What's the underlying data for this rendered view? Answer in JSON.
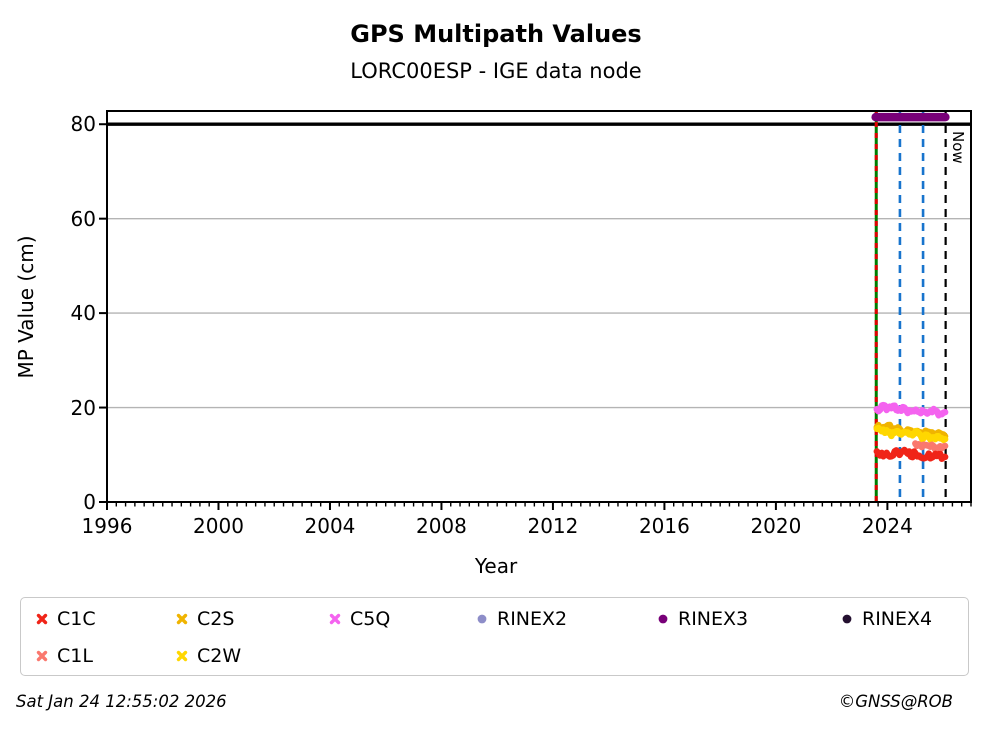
{
  "header": {
    "title": "GPS Multipath Values",
    "subtitle": "LORC00ESP - IGE data node"
  },
  "footer": {
    "timestamp": "Sat Jan 24 12:55:02 2026",
    "credit": "©GNSS@ROB"
  },
  "chart_data": {
    "type": "line",
    "title": "GPS Multipath Values",
    "subtitle": "LORC00ESP - IGE data node",
    "xlabel": "Year",
    "ylabel": "MP Value (cm)",
    "xlim": [
      1996,
      2027.0
    ],
    "ylim": [
      0,
      82.8
    ],
    "x_ticks": [
      1996,
      2000,
      2004,
      2008,
      2012,
      2016,
      2020,
      2024
    ],
    "y_ticks": [
      0,
      20,
      40,
      60,
      80
    ],
    "x_minor_tick_step_years": 0.3333,
    "grid": "horizontal-gray-lines-at-20-40-60",
    "legend_position": "below-plot",
    "threshold_line": {
      "y": 80,
      "color": "#000000",
      "note": "thick horizontal line across plot"
    },
    "series": [
      {
        "name": "C2S",
        "color": "#f0b400",
        "marker": "x",
        "x_start": 2023.62,
        "x_end": 2026.07,
        "value_start": 15.8,
        "value_end": 14.3,
        "jitter": 2.0
      },
      {
        "name": "C2W",
        "color": "#ffd700",
        "marker": "x",
        "x_start": 2023.62,
        "x_end": 2026.07,
        "value_start": 15.2,
        "value_end": 13.5,
        "jitter": 2.2
      },
      {
        "name": "C5Q",
        "color": "#f463ef",
        "marker": "x",
        "x_start": 2023.62,
        "x_end": 2026.07,
        "value_start": 20.1,
        "value_end": 18.7,
        "jitter": 2.2
      },
      {
        "name": "C1L",
        "color": "#fa786e",
        "marker": "x",
        "x_start": 2025.0,
        "x_end": 2026.07,
        "value_start": 12.3,
        "value_end": 11.4,
        "jitter": 1.8
      },
      {
        "name": "C1C",
        "color": "#f02418",
        "marker": "x",
        "x_start": 2023.62,
        "x_end": 2026.07,
        "value_start": 10.5,
        "value_end": 9.7,
        "jitter": 2.6
      }
    ],
    "rinex_availability_bars": [
      {
        "name": "RINEX3",
        "color": "#780078",
        "x_start": 2023.58,
        "x_end": 2026.08,
        "value": 81.5
      }
    ],
    "event_lines": [
      {
        "x": 2023.6,
        "style": "solid-with-red-dashes",
        "color": "#007d00",
        "dash_color": "#e00000",
        "label": ""
      },
      {
        "x": 2024.45,
        "style": "dashed",
        "color": "#1874cd",
        "label": ""
      },
      {
        "x": 2025.28,
        "style": "dashed",
        "color": "#1874cd",
        "label": ""
      },
      {
        "x": 2026.09,
        "style": "dashed",
        "color": "#000000",
        "label": "Now"
      }
    ],
    "now_label": "Now"
  },
  "legend": {
    "items": [
      {
        "label": "C1C",
        "marker": "x",
        "color": "#f02418",
        "row": 0,
        "col": 0
      },
      {
        "label": "C2S",
        "marker": "x",
        "color": "#f0b400",
        "row": 0,
        "col": 1
      },
      {
        "label": "C5Q",
        "marker": "x",
        "color": "#f463ef",
        "row": 0,
        "col": 2
      },
      {
        "label": "RINEX2",
        "marker": "dot",
        "color": "#8d8dc8",
        "row": 0,
        "col": 3
      },
      {
        "label": "RINEX3",
        "marker": "dot",
        "color": "#780078",
        "row": 0,
        "col": 4
      },
      {
        "label": "RINEX4",
        "marker": "dot",
        "color": "#241030",
        "row": 0,
        "col": 5
      },
      {
        "label": "C1L",
        "marker": "x",
        "color": "#fa786e",
        "row": 1,
        "col": 0
      },
      {
        "label": "C2W",
        "marker": "x",
        "color": "#ffd700",
        "row": 1,
        "col": 1
      }
    ]
  }
}
